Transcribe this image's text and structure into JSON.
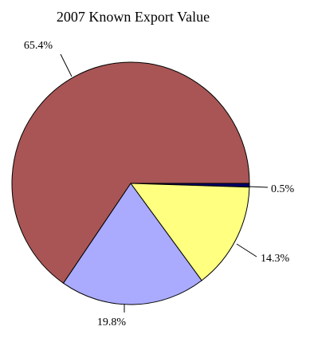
{
  "chart_data": {
    "type": "pie",
    "title": "2007 Known Export Value",
    "slices": [
      {
        "value": 0.5,
        "label": "0.5%",
        "color": "#000066"
      },
      {
        "value": 14.3,
        "label": "14.3%",
        "color": "#ffff80"
      },
      {
        "value": 19.8,
        "label": "19.8%",
        "color": "#aaaaff"
      },
      {
        "value": 65.4,
        "label": "65.4%",
        "color": "#a95555"
      }
    ],
    "start_direction": "east",
    "direction": "clockwise",
    "legend": "none"
  }
}
